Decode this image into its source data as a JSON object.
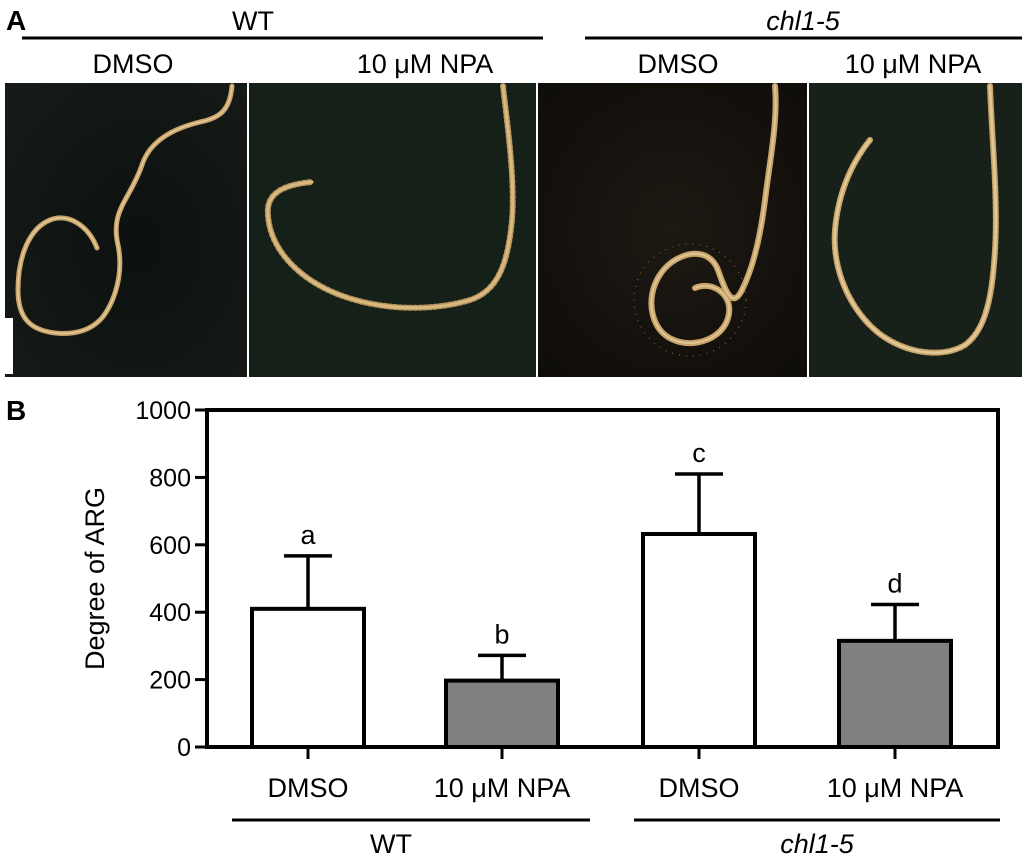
{
  "panel_a": {
    "label": "A",
    "groups": [
      {
        "name": "WT",
        "italic": false,
        "conditions": [
          "DMSO",
          "10 μM NPA"
        ]
      },
      {
        "name": "chl1-5",
        "italic": true,
        "conditions": [
          "DMSO",
          "10 μM NPA"
        ]
      }
    ]
  },
  "panel_b": {
    "label": "B"
  },
  "colors": {
    "dmso_bar": "#ffffff",
    "npa_bar": "#808080",
    "photo_bg": "#101512",
    "root": "#c9a46a"
  },
  "chart_data": {
    "type": "bar",
    "title": "",
    "xlabel": "",
    "ylabel": "Degree of ARG",
    "ylim": [
      0,
      1000
    ],
    "yticks": [
      0,
      200,
      400,
      600,
      800,
      1000
    ],
    "grid": false,
    "legend": "none",
    "categories": [
      "DMSO",
      "10 μM NPA",
      "DMSO",
      "10 μM NPA"
    ],
    "groups": [
      {
        "name": "WT",
        "italic": false,
        "span": [
          0,
          1
        ]
      },
      {
        "name": "chl1-5",
        "italic": true,
        "span": [
          2,
          3
        ]
      }
    ],
    "values": [
      410,
      197,
      632,
      315
    ],
    "errors": [
      157,
      75,
      178,
      108
    ],
    "significance_letters": [
      "a",
      "b",
      "c",
      "d"
    ],
    "bar_colors": [
      "#ffffff",
      "#808080",
      "#ffffff",
      "#808080"
    ]
  }
}
